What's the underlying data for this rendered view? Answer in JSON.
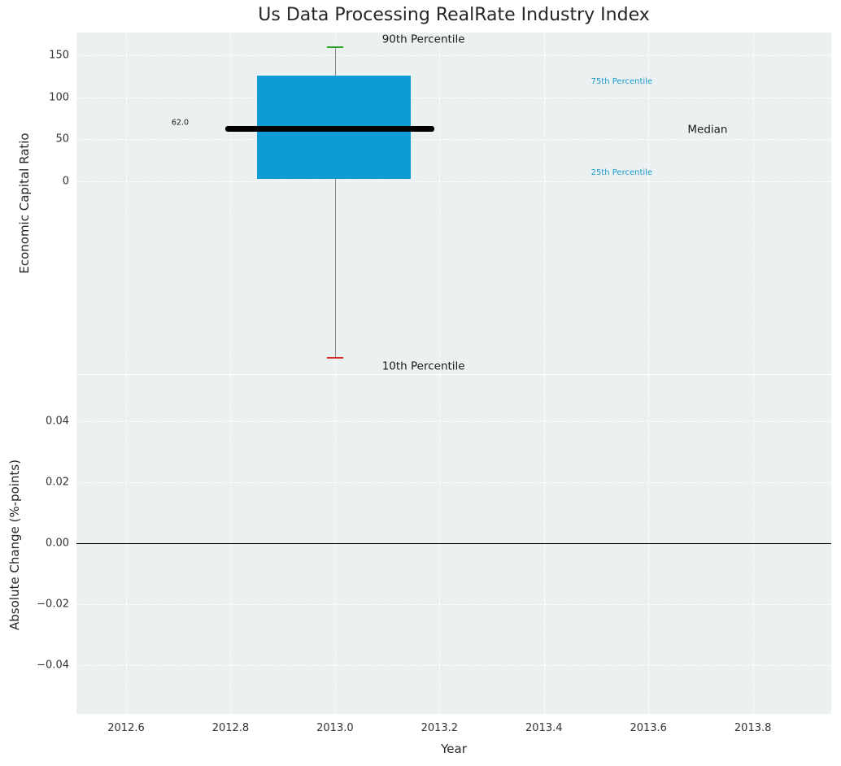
{
  "figure": {
    "plot_bg": "#ebf0f0",
    "grid_color": "#ffffff"
  },
  "chart_data": [
    {
      "type": "boxplot",
      "title": "Us Data Processing RealRate Industry Index",
      "xlabel": "Year",
      "ylabel": "Economic Capital Ratio",
      "xlim": [
        2012.505,
        2013.95
      ],
      "ylim": [
        -229,
        177
      ],
      "grid": true,
      "xticks": [
        2012.6,
        2012.8,
        2013.0,
        2013.2,
        2013.4,
        2013.6,
        2013.8
      ],
      "xtick_labels": [
        "2012.6",
        "2012.8",
        "2013.0",
        "2013.2",
        "2013.4",
        "2013.6",
        "2013.8"
      ],
      "yticks": [
        0,
        50,
        100,
        150
      ],
      "ytick_labels": [
        "0",
        "50",
        "100",
        "150"
      ],
      "box": {
        "x_center": 2013.0,
        "box_x_left": 2012.85,
        "box_x_right": 2013.145,
        "median_x_left": 2012.79,
        "median_x_right": 2013.19,
        "median": 62.0,
        "q1": 3,
        "q3": 126,
        "p10": -210,
        "p90": 160,
        "cap_half_width": 0.016,
        "box_color": "#0f9bd5",
        "median_color": "#000000",
        "whisker_color": "#888888",
        "cap_high_color": "#2ca02c",
        "cap_low_color": "#d62728"
      },
      "annotations": [
        {
          "text": "90th Percentile",
          "x": 2013.09,
          "y": 168,
          "color": "#1a1a1a",
          "size": 13.5
        },
        {
          "text": "10th Percentile",
          "x": 2013.09,
          "y": -220,
          "color": "#1a1a1a",
          "size": 13.5
        },
        {
          "text": "75th Percentile",
          "x": 2013.49,
          "y": 118,
          "color": "#1b9cd0",
          "size": 10
        },
        {
          "text": "Median",
          "x": 2013.675,
          "y": 61,
          "color": "#1a1a1a",
          "size": 13.5
        },
        {
          "text": "25th Percentile",
          "x": 2013.49,
          "y": 10,
          "color": "#1b9cd0",
          "size": 10
        },
        {
          "text": "62.0",
          "x": 2012.687,
          "y": 70,
          "color": "#1a1a1a",
          "size": 9.5
        }
      ]
    },
    {
      "type": "line",
      "title": "",
      "xlabel": "Year",
      "ylabel": "Absolute Change (%-points)",
      "xlim": [
        2012.505,
        2013.95
      ],
      "ylim": [
        -0.056,
        0.0552
      ],
      "grid": true,
      "xticks": [
        2012.6,
        2012.8,
        2013.0,
        2013.2,
        2013.4,
        2013.6,
        2013.8
      ],
      "xtick_labels": [
        "2012.6",
        "2012.8",
        "2013.0",
        "2013.2",
        "2013.4",
        "2013.6",
        "2013.8"
      ],
      "yticks": [
        0.04,
        0.02,
        0.0,
        -0.02,
        -0.04
      ],
      "ytick_labels": [
        "0.04",
        "0.02",
        "0.00",
        "−0.02",
        "−0.04"
      ],
      "zero_line": true,
      "series": []
    }
  ]
}
